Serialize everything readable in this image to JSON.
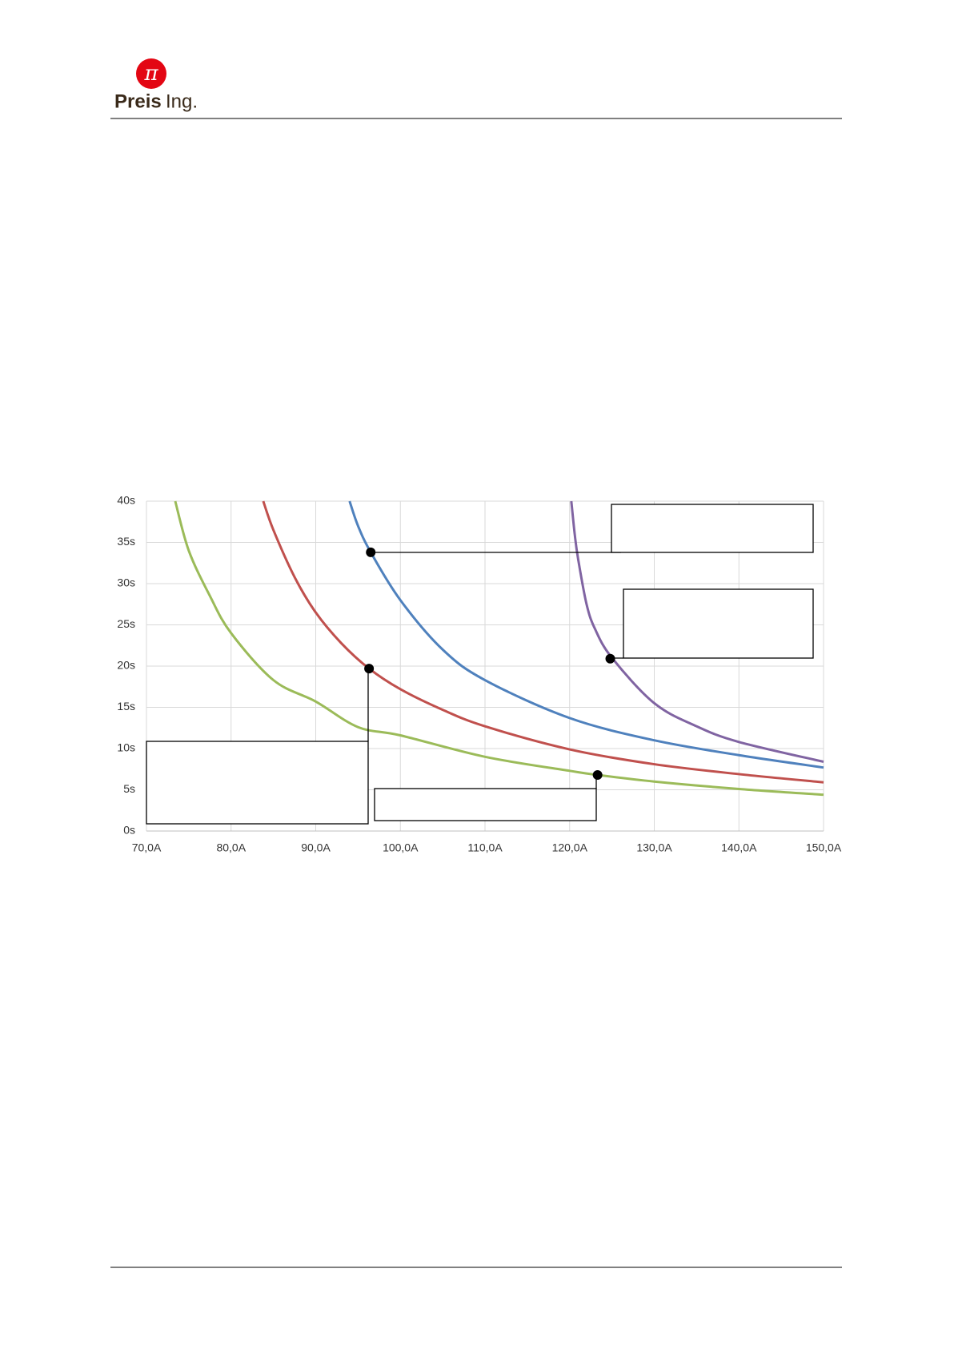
{
  "header": {
    "company": "Preis",
    "suffix": "Ing."
  },
  "chart_data": {
    "type": "line",
    "xlim": [
      70,
      150
    ],
    "xticks": [
      {
        "value": 70,
        "label": "70,0A"
      },
      {
        "value": 80,
        "label": "80,0A"
      },
      {
        "value": 90,
        "label": "90,0A"
      },
      {
        "value": 100,
        "label": "100,0A"
      },
      {
        "value": 110,
        "label": "110,0A"
      },
      {
        "value": 120,
        "label": "120,0A"
      },
      {
        "value": 130,
        "label": "130,0A"
      },
      {
        "value": 140,
        "label": "140,0A"
      },
      {
        "value": 150,
        "label": "150,0A"
      }
    ],
    "ylim": [
      0,
      40
    ],
    "yticks": [
      {
        "value": 0,
        "label": "0s"
      },
      {
        "value": 5,
        "label": "5s"
      },
      {
        "value": 10,
        "label": "10s"
      },
      {
        "value": 15,
        "label": "15s"
      },
      {
        "value": 20,
        "label": "20s"
      },
      {
        "value": 25,
        "label": "25s"
      },
      {
        "value": 30,
        "label": "30s"
      },
      {
        "value": 35,
        "label": "35s"
      },
      {
        "value": 40,
        "label": "40s"
      }
    ],
    "grid": true,
    "series": [
      {
        "color": "#9bbb59",
        "x": [
          73.4,
          75,
          77.5,
          80,
          85,
          90,
          95,
          100,
          110,
          120,
          123.3,
          130,
          140,
          150
        ],
        "values": [
          40,
          34,
          28.5,
          24,
          18.3,
          15.7,
          12.6,
          11.6,
          9,
          7.3,
          6.8,
          6.0,
          5.1,
          4.4
        ]
      },
      {
        "color": "#c0504d",
        "x": [
          83.8,
          85,
          87.5,
          90,
          93,
          96.3,
          100,
          105,
          110,
          120,
          130,
          140,
          150
        ],
        "values": [
          40,
          36.5,
          30.8,
          26.5,
          22.8,
          19.7,
          17.2,
          14.7,
          12.7,
          9.9,
          8.1,
          6.9,
          5.9
        ]
      },
      {
        "color": "#4f81bd",
        "x": [
          94,
          95,
          96.5,
          100,
          105,
          110,
          120,
          130,
          140,
          150
        ],
        "values": [
          40,
          37,
          33.8,
          28,
          22,
          18.3,
          13.7,
          11,
          9.2,
          7.7
        ]
      },
      {
        "color": "#8064a2",
        "x": [
          120.2,
          120.6,
          121,
          122,
          123,
          125,
          130,
          135,
          140,
          150
        ],
        "values": [
          40,
          36,
          33,
          27.5,
          24.5,
          21,
          15.5,
          12.7,
          10.8,
          8.4
        ]
      }
    ],
    "markers": [
      {
        "x": 96.5,
        "y": 33.8
      },
      {
        "x": 96.3,
        "y": 19.7
      },
      {
        "x": 124.8,
        "y": 20.9
      },
      {
        "x": 123.3,
        "y": 6.8
      }
    ]
  }
}
